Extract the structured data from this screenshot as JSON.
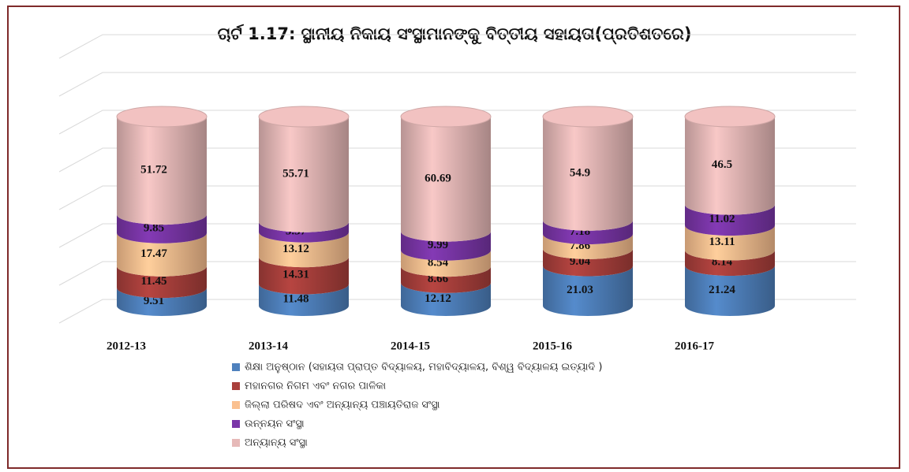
{
  "chart_data": {
    "type": "stacked-cylinder",
    "title": "ଚାର୍ଟ 1.17: ସ୍ଥାନୀୟ ନିକାୟ ସଂସ୍ଥାମାନଙ୍କୁ ବିତ୍ତୀୟ ସହାୟତା(ପ୍ରତିଶତରେ)",
    "categories": [
      "2012-13",
      "2013-14",
      "2014-15",
      "2015-16",
      "2016-17"
    ],
    "series": [
      {
        "name": "ଶିକ୍ଷା ଅନୁଷ୍ଠାନ (ସହାୟତା ପ୍ରାପ୍ତ ବିଦ୍ୟାଳୟ, ମହାବିଦ୍ୟାଳୟ, ବିଶ୍ୱ ବିଦ୍ୟାଳୟ ଇତ୍ୟାଦି )",
        "color": "#4f81bd",
        "values": [
          9.51,
          11.48,
          12.12,
          21.03,
          21.24
        ]
      },
      {
        "name": "ମହାନଗର ନିଗମ ଏବଂ ନଗର ପାଳିକା",
        "color": "#a9403c",
        "values": [
          11.45,
          14.31,
          8.66,
          9.04,
          8.14
        ]
      },
      {
        "name": "ଜିଲ୍ଲା ପରିଷଦ ଏବଂ ଅନ୍ୟାନ୍ୟ ପଞ୍ଚାୟତିରାଜ ସଂସ୍ଥା",
        "color": "#fac090",
        "values": [
          17.47,
          13.12,
          8.54,
          7.86,
          13.11
        ]
      },
      {
        "name": "ଉନ୍ନୟନ ସଂସ୍ଥା",
        "color": "#7a36a8",
        "values": [
          9.85,
          5.37,
          9.99,
          7.18,
          11.02
        ]
      },
      {
        "name": "ଅନ୍ୟାନ୍ୟ ସଂସ୍ଥା",
        "color": "#e6b9b8",
        "values": [
          51.72,
          55.71,
          60.69,
          54.9,
          46.5
        ]
      }
    ],
    "ylim": [
      0,
      140
    ],
    "yticks": [
      0,
      20,
      40,
      60,
      80,
      100,
      120,
      140
    ],
    "grid": true
  }
}
